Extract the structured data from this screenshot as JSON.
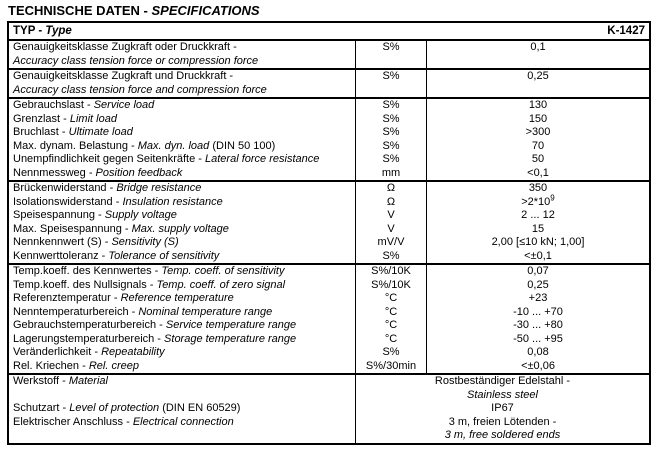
{
  "page_title": {
    "main": "TECHNISCHE DATEN -",
    "italic": "SPECIFICATIONS"
  },
  "type_row": {
    "de": "TYP -",
    "en": "Type",
    "value": "K-1427"
  },
  "sections": [
    {
      "rows": [
        {
          "de": "Genauigkeitsklasse Zugkraft oder Druckkraft -",
          "en": "Accuracy class tension force or compression force",
          "unit": "S%",
          "value": "0,1"
        }
      ]
    },
    {
      "rows": [
        {
          "de": "Genauigkeitsklasse Zugkraft und Druckkraft -",
          "en": "Accuracy class tension force and compression force",
          "unit": "S%",
          "value": "0,25"
        }
      ]
    },
    {
      "rows": [
        {
          "de": "Gebrauchslast -",
          "en": "Service load",
          "unit": "S%",
          "value": "130"
        },
        {
          "de": "Grenzlast -",
          "en": "Limit load",
          "unit": "S%",
          "value": "150"
        },
        {
          "de": "Bruchlast -",
          "en": "Ultimate load",
          "unit": "S%",
          "value": ">300"
        },
        {
          "de": "Max. dynam. Belastung -",
          "en": "Max. dyn. load",
          "suffix": "(DIN 50 100)",
          "unit": "S%",
          "value": "70"
        },
        {
          "de": "Unempfindlichkeit gegen Seitenkräfte -",
          "en": "Lateral force resistance",
          "unit": "S%",
          "value": "50"
        },
        {
          "de": "Nennmessweg -",
          "en": "Position feedback",
          "unit": "mm",
          "value": "<0,1"
        }
      ]
    },
    {
      "rows": [
        {
          "de": "Brückenwiderstand -",
          "en": "Bridge resistance",
          "unit": "Ω",
          "value": "350"
        },
        {
          "de": "Isolationswiderstand -",
          "en": "Insulation resistance",
          "unit": "Ω",
          "value": ">2*10",
          "value_sup": "9"
        },
        {
          "de": "Speisespannung -",
          "en": "Supply voltage",
          "unit": "V",
          "value": "2 ... 12"
        },
        {
          "de": "Max. Speisespannung -",
          "en": "Max. supply voltage",
          "unit": "V",
          "value": "15"
        },
        {
          "de": "Nennkennwert (S) -",
          "en": "Sensitivity (S)",
          "unit": "mV/V",
          "value": "2,00 [≤10 kN; 1,00]"
        },
        {
          "de": "Kennwerttoleranz -",
          "en": "Tolerance of sensitivity",
          "unit": "S%",
          "value": "<±0,1"
        }
      ]
    },
    {
      "rows": [
        {
          "de": "Temp.koeff. des Kennwertes -",
          "en": "Temp. coeff. of sensitivity",
          "unit": "S%/10K",
          "value": "0,07"
        },
        {
          "de": "Temp.koeff. des Nullsignals -",
          "en": "Temp. coeff. of zero signal",
          "unit": "S%/10K",
          "value": "0,25"
        },
        {
          "de": "Referenztemperatur -",
          "en": "Reference temperature",
          "unit": "°C",
          "value": "+23"
        },
        {
          "de": "Nenntemperaturbereich -",
          "en": "Nominal temperature range",
          "unit": "°C",
          "value": "-10 ... +70"
        },
        {
          "de": "Gebrauchstemperaturbereich -",
          "en": "Service temperature range",
          "unit": "°C",
          "value": "-30 ... +80"
        },
        {
          "de": "Lagerungstemperaturbereich -",
          "en": "Storage temperature range",
          "unit": "°C",
          "value": "-50 ... +95"
        },
        {
          "de": "Veränderlichkeit -",
          "en": "Repeatability",
          "unit": "S%",
          "value": "0,08"
        },
        {
          "de": "Rel. Kriechen -",
          "en": "Rel. creep",
          "unit": "S%/30min",
          "value": "<±0,06"
        }
      ]
    },
    {
      "labels": [
        {
          "de": "Werkstoff -",
          "en": "Material"
        },
        {
          "de": "Schutzart -",
          "en": "Level of protection",
          "suffix": "(DIN EN 60529)"
        },
        {
          "de": "Elektrischer Anschluss -",
          "en": "Electrical connection"
        }
      ],
      "values": [
        "Rostbeständiger Edelstahl -",
        "Stainless steel",
        "IP67",
        "3 m, freien Lötenden -",
        "3 m, free soldered ends"
      ]
    }
  ]
}
